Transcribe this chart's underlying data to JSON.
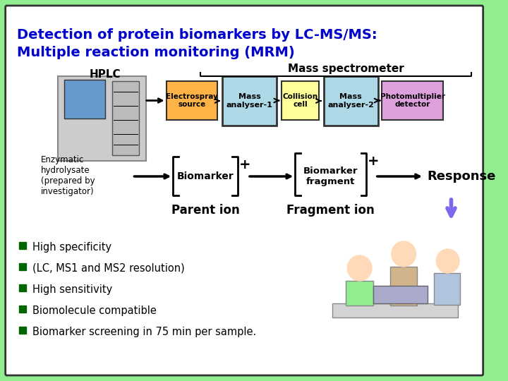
{
  "title_line1": "Detection of protein biomarkers by LC-MS/MS:",
  "title_line2": "Multiple reaction monitoring (MRM)",
  "title_color": "#0000CC",
  "bg_color": "#FFFFFF",
  "outer_bg": "#90EE90",
  "border_color": "#333333",
  "hplc_label": "HPLC",
  "mass_spec_label": "Mass spectrometer",
  "electrospray_label": "Electrospray\nsource",
  "electrospray_color": "#FFB347",
  "mass_analyser1_label": "Mass\nanalyser-1",
  "mass_analyser1_color": "#ADD8E6",
  "collision_label": "Collision\ncell",
  "collision_color": "#FFFF99",
  "mass_analyser2_label": "Mass\nanalyser-2",
  "mass_analyser2_color": "#ADD8E6",
  "photomult_label": "Photomultiplier\ndetector",
  "photomult_color": "#DDA0DD",
  "enzymatic_label": "Enzymatic\nhydrolysate\n(prepared by\ninvestigator)",
  "biomarker_label": "Biomarker",
  "parent_ion_label": "Parent ion",
  "biomarker_fragment_label": "Biomarker\nfragment",
  "fragment_ion_label": "Fragment ion",
  "response_label": "Response",
  "bullet_items": [
    "High specificity",
    "(LC, MS1 and MS2 resolution)",
    "High sensitivity",
    "Biomolecule compatible",
    "Biomarker screening in 75 min per sample."
  ],
  "bullet_color": "#006600",
  "bullet_text_color": "#000000",
  "arrow_color": "#000000",
  "bracket_color": "#000000",
  "plus_color": "#000000",
  "box_border_color": "#333333",
  "response_arrow_color": "#7B68EE"
}
